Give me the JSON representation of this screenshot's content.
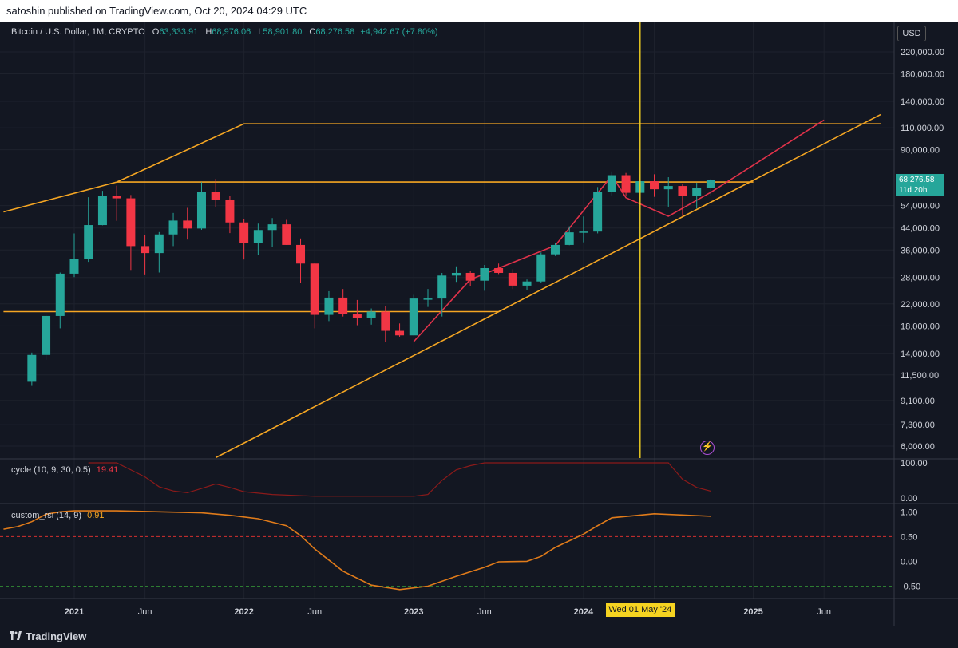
{
  "header": {
    "publisher_line": "satoshin published on TradingView.com, Oct 20, 2024 04:29 UTC"
  },
  "footer": {
    "brand": "TradingView"
  },
  "legend": {
    "symbol": "Bitcoin / U.S. Dollar, 1M, CRYPTO",
    "open_label": "O",
    "open": "63,333.91",
    "high_label": "H",
    "high": "68,976.06",
    "low_label": "L",
    "low": "58,901.80",
    "close_label": "C",
    "close": "68,276.58",
    "change": "+4,942.67 (+7.80%)"
  },
  "price_axis": {
    "currency": "USD"
  },
  "last_price": {
    "value": "68,276.58",
    "countdown": "11d 20h",
    "color": "#26a69a"
  },
  "crosshair": {
    "date_label": "Wed 01 May '24",
    "color": "#f5d321"
  },
  "colors": {
    "up": "#26a69a",
    "down": "#f23645",
    "trendline": "#f5a623",
    "red_line": "#e0324a",
    "background": "#131722"
  },
  "chart_data": [
    {
      "type": "candlestick",
      "scale": "log",
      "x_tick_labels": [
        "2021",
        "Jun",
        "2022",
        "Jun",
        "2023",
        "Jun",
        "2024",
        "Jun",
        "2025",
        "Jun"
      ],
      "y_tick_labels": [
        "220,000.00",
        "180,000.00",
        "140,000.00",
        "110,000.00",
        "90,000.00",
        "54,000.00",
        "44,000.00",
        "36,000.00",
        "28,000.00",
        "22,000.00",
        "18,000.00",
        "14,000.00",
        "11,500.00",
        "9,100.00",
        "7,300.00",
        "6,000.00"
      ],
      "y_ticks": [
        220000,
        180000,
        140000,
        110000,
        90000,
        54000,
        44000,
        36000,
        28000,
        22000,
        18000,
        14000,
        11500,
        9100,
        7300,
        6000
      ],
      "ylim": [
        5400,
        300000
      ],
      "candles": [
        {
          "t": "2020-10",
          "o": 10800,
          "h": 14100,
          "l": 10400,
          "c": 13800
        },
        {
          "t": "2020-11",
          "o": 13800,
          "h": 19900,
          "l": 13200,
          "c": 19700
        },
        {
          "t": "2020-12",
          "o": 19700,
          "h": 29300,
          "l": 17600,
          "c": 29000
        },
        {
          "t": "2021-01",
          "o": 29000,
          "h": 41900,
          "l": 28100,
          "c": 33100
        },
        {
          "t": "2021-02",
          "o": 33100,
          "h": 58300,
          "l": 32300,
          "c": 45200
        },
        {
          "t": "2021-03",
          "o": 45200,
          "h": 61800,
          "l": 45100,
          "c": 58800
        },
        {
          "t": "2021-04",
          "o": 58800,
          "h": 64800,
          "l": 47000,
          "c": 57700
        },
        {
          "t": "2021-05",
          "o": 57700,
          "h": 59500,
          "l": 30000,
          "c": 37300
        },
        {
          "t": "2021-06",
          "o": 37300,
          "h": 41300,
          "l": 28800,
          "c": 35000
        },
        {
          "t": "2021-07",
          "o": 35000,
          "h": 42400,
          "l": 29300,
          "c": 41500
        },
        {
          "t": "2021-08",
          "o": 41500,
          "h": 50500,
          "l": 37300,
          "c": 47100
        },
        {
          "t": "2021-09",
          "o": 47100,
          "h": 52900,
          "l": 39600,
          "c": 43800
        },
        {
          "t": "2021-10",
          "o": 43800,
          "h": 66900,
          "l": 43300,
          "c": 61300
        },
        {
          "t": "2021-11",
          "o": 61300,
          "h": 69000,
          "l": 53300,
          "c": 57000
        },
        {
          "t": "2021-12",
          "o": 57000,
          "h": 59100,
          "l": 42000,
          "c": 46300
        },
        {
          "t": "2022-01",
          "o": 46300,
          "h": 47900,
          "l": 33000,
          "c": 38500
        },
        {
          "t": "2022-02",
          "o": 38500,
          "h": 45800,
          "l": 34300,
          "c": 43200
        },
        {
          "t": "2022-03",
          "o": 43200,
          "h": 48200,
          "l": 37100,
          "c": 45500
        },
        {
          "t": "2022-04",
          "o": 45500,
          "h": 47400,
          "l": 37700,
          "c": 37700
        },
        {
          "t": "2022-05",
          "o": 37700,
          "h": 40000,
          "l": 26700,
          "c": 31800
        },
        {
          "t": "2022-06",
          "o": 31800,
          "h": 31900,
          "l": 17600,
          "c": 19900
        },
        {
          "t": "2022-07",
          "o": 19900,
          "h": 24700,
          "l": 18800,
          "c": 23300
        },
        {
          "t": "2022-08",
          "o": 23300,
          "h": 25200,
          "l": 19600,
          "c": 20000
        },
        {
          "t": "2022-09",
          "o": 20000,
          "h": 22800,
          "l": 18100,
          "c": 19400
        },
        {
          "t": "2022-10",
          "o": 19400,
          "h": 21100,
          "l": 18200,
          "c": 20500
        },
        {
          "t": "2022-11",
          "o": 20500,
          "h": 21500,
          "l": 15500,
          "c": 17200
        },
        {
          "t": "2022-12",
          "o": 17200,
          "h": 18400,
          "l": 16300,
          "c": 16500
        },
        {
          "t": "2023-01",
          "o": 16500,
          "h": 23900,
          "l": 16500,
          "c": 23100
        },
        {
          "t": "2023-02",
          "o": 23100,
          "h": 25200,
          "l": 21400,
          "c": 23100
        },
        {
          "t": "2023-03",
          "o": 23100,
          "h": 29200,
          "l": 19600,
          "c": 28500
        },
        {
          "t": "2023-04",
          "o": 28500,
          "h": 31000,
          "l": 26900,
          "c": 29200
        },
        {
          "t": "2023-05",
          "o": 29200,
          "h": 29800,
          "l": 25800,
          "c": 27200
        },
        {
          "t": "2023-06",
          "o": 27200,
          "h": 31400,
          "l": 24800,
          "c": 30500
        },
        {
          "t": "2023-07",
          "o": 30500,
          "h": 31800,
          "l": 28900,
          "c": 29200
        },
        {
          "t": "2023-08",
          "o": 29200,
          "h": 30200,
          "l": 25200,
          "c": 26000
        },
        {
          "t": "2023-09",
          "o": 26000,
          "h": 27500,
          "l": 24900,
          "c": 27000
        },
        {
          "t": "2023-10",
          "o": 27000,
          "h": 35200,
          "l": 26600,
          "c": 34600
        },
        {
          "t": "2023-11",
          "o": 34600,
          "h": 38400,
          "l": 34100,
          "c": 37700
        },
        {
          "t": "2023-12",
          "o": 37700,
          "h": 44700,
          "l": 37600,
          "c": 42300
        },
        {
          "t": "2024-01",
          "o": 42300,
          "h": 48900,
          "l": 38600,
          "c": 42600
        },
        {
          "t": "2024-02",
          "o": 42600,
          "h": 64000,
          "l": 41900,
          "c": 61200
        },
        {
          "t": "2024-03",
          "o": 61200,
          "h": 73800,
          "l": 59300,
          "c": 71300
        },
        {
          "t": "2024-04",
          "o": 71300,
          "h": 72800,
          "l": 59200,
          "c": 60700
        },
        {
          "t": "2024-05",
          "o": 60700,
          "h": 71900,
          "l": 56600,
          "c": 67500
        },
        {
          "t": "2024-06",
          "o": 67500,
          "h": 71900,
          "l": 58500,
          "c": 62700
        },
        {
          "t": "2024-07",
          "o": 62700,
          "h": 70000,
          "l": 53500,
          "c": 64600
        },
        {
          "t": "2024-08",
          "o": 64600,
          "h": 65600,
          "l": 49100,
          "c": 59000
        },
        {
          "t": "2024-09",
          "o": 59000,
          "h": 66500,
          "l": 52600,
          "c": 63300
        },
        {
          "t": "2024-10",
          "o": 63333.91,
          "h": 68976.06,
          "l": 58901.8,
          "c": 68276.58
        }
      ],
      "trendlines": [
        {
          "color": "#f5a623",
          "points": [
            [
              "2020-08",
              51000
            ],
            [
              "2021-04",
              67000
            ],
            [
              "2022-01",
              114000
            ],
            [
              "2025-10",
              114000
            ]
          ]
        },
        {
          "color": "#f5a623",
          "points": [
            [
              "2021-04",
              67000
            ],
            [
              "2025-01",
              67000
            ]
          ]
        },
        {
          "color": "#f5a623",
          "points": [
            [
              "2020-08",
              20500
            ],
            [
              "2023-07",
              20500
            ]
          ]
        },
        {
          "color": "#f5a623",
          "points": [
            [
              "2021-11",
              5400
            ],
            [
              "2025-10",
              124000
            ]
          ]
        },
        {
          "color": "#e0324a",
          "points": [
            [
              "2023-01",
              15600
            ],
            [
              "2023-05",
              27500
            ],
            [
              "2023-11",
              37500
            ],
            [
              "2024-03",
              71000
            ],
            [
              "2024-04",
              58000
            ],
            [
              "2024-07",
              49000
            ],
            [
              "2024-10",
              61000
            ],
            [
              "2025-06",
              118000
            ]
          ]
        }
      ]
    },
    {
      "type": "line",
      "title": "cycle (10, 9, 30, 0.5)",
      "last_value": "19.41",
      "last_value_color": "#f23645",
      "y_tick_labels": [
        "100.00",
        "0.00"
      ],
      "ylim": [
        0,
        100
      ],
      "color": "#8b1a1a",
      "x": [
        "2021-02",
        "2021-04",
        "2021-06",
        "2021-07",
        "2021-08",
        "2021-09",
        "2021-10",
        "2021-11",
        "2021-12",
        "2022-01",
        "2022-03",
        "2022-06",
        "2022-09",
        "2023-01",
        "2023-02",
        "2023-03",
        "2023-04",
        "2023-05",
        "2023-06",
        "2024-07",
        "2024-08",
        "2024-09",
        "2024-10"
      ],
      "values": [
        100,
        100,
        60,
        32,
        20,
        15,
        27,
        40,
        30,
        18,
        10,
        5,
        5,
        5,
        10,
        50,
        80,
        92,
        100,
        100,
        53,
        30,
        19.41
      ]
    },
    {
      "type": "line",
      "title": "custom_rsi (14, 9)",
      "last_value": "0.91",
      "last_value_color": "#f5a623",
      "y_tick_labels": [
        "1.00",
        "0.50",
        "0.00",
        "-0.50"
      ],
      "ylim": [
        -0.75,
        1.15
      ],
      "color": "#e07b1a",
      "x": [
        "2020-08",
        "2020-09",
        "2020-10",
        "2020-11",
        "2020-12",
        "2021-01",
        "2021-04",
        "2021-07",
        "2021-10",
        "2021-12",
        "2022-02",
        "2022-04",
        "2022-05",
        "2022-06",
        "2022-08",
        "2022-10",
        "2022-12",
        "2023-02",
        "2023-04",
        "2023-06",
        "2023-07",
        "2023-09",
        "2023-10",
        "2023-11",
        "2024-01",
        "2024-02",
        "2024-03",
        "2024-06",
        "2024-10"
      ],
      "values": [
        0.65,
        0.7,
        0.8,
        0.95,
        1.0,
        1.02,
        1.02,
        1.0,
        0.98,
        0.93,
        0.86,
        0.72,
        0.52,
        0.25,
        -0.2,
        -0.48,
        -0.57,
        -0.5,
        -0.3,
        -0.12,
        -0.01,
        0.0,
        0.1,
        0.28,
        0.55,
        0.72,
        0.88,
        0.96,
        0.91
      ],
      "reference_lines": [
        0.5,
        -0.5
      ]
    }
  ]
}
